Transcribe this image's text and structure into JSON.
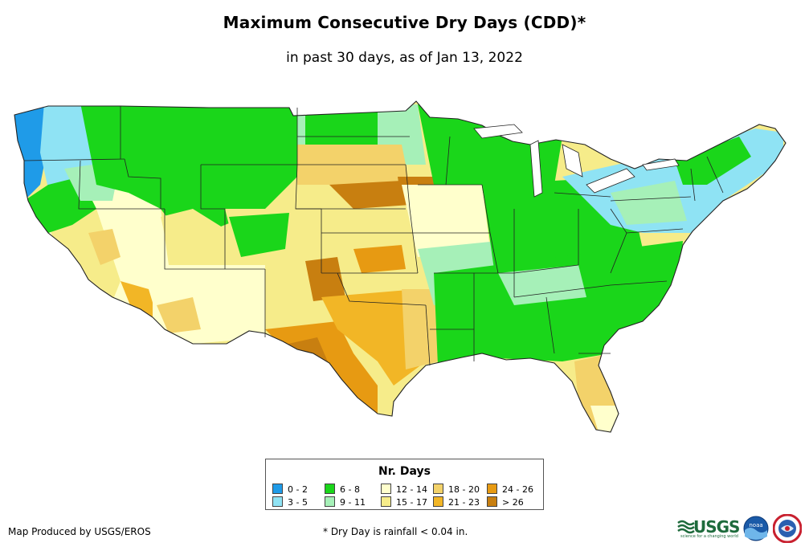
{
  "title": "Maximum Consecutive Dry Days (CDD)*",
  "subtitle": "in past 30 days, as of Jan 13, 2022",
  "legend": {
    "title": "Nr. Days",
    "items": [
      {
        "label": "0 - 2",
        "color": "#1f9be8"
      },
      {
        "label": "3 - 5",
        "color": "#8fe3f4"
      },
      {
        "label": "6 - 8",
        "color": "#1ad61a"
      },
      {
        "label": "9 - 11",
        "color": "#a6f0b8"
      },
      {
        "label": "12 - 14",
        "color": "#ffffcc"
      },
      {
        "label": "15 - 17",
        "color": "#f6ec8a"
      },
      {
        "label": "18 - 20",
        "color": "#f3d26a"
      },
      {
        "label": "21 - 23",
        "color": "#f2b626"
      },
      {
        "label": "24 - 26",
        "color": "#e79a12"
      },
      {
        "label": "> 26",
        "color": "#c87f10"
      }
    ]
  },
  "credit": "Map Produced by USGS/EROS",
  "footnote": "* Dry Day is rainfall < 0.04 in.",
  "logos": {
    "usgs_text": "USGS",
    "usgs_tagline": "science for a changing world",
    "noaa_text": "noaa"
  },
  "map_regions": [
    {
      "name": "pacific-northwest-coast",
      "category": "0 - 2"
    },
    {
      "name": "northwest-interior",
      "category": "3 - 5"
    },
    {
      "name": "northern-rockies",
      "category": "6 - 8"
    },
    {
      "name": "great-basin",
      "category": "12 - 14"
    },
    {
      "name": "southwest",
      "category": "15 - 17"
    },
    {
      "name": "nebraska-sandhills",
      "category": "> 26"
    },
    {
      "name": "central-plains",
      "category": "15 - 17"
    },
    {
      "name": "west-texas",
      "category": "24 - 26"
    },
    {
      "name": "gulf-coast-texas",
      "category": "21 - 23"
    },
    {
      "name": "midwest",
      "category": "6 - 8"
    },
    {
      "name": "southeast",
      "category": "6 - 8"
    },
    {
      "name": "northeast",
      "category": "3 - 5"
    },
    {
      "name": "florida-peninsula",
      "category": "18 - 20"
    }
  ]
}
